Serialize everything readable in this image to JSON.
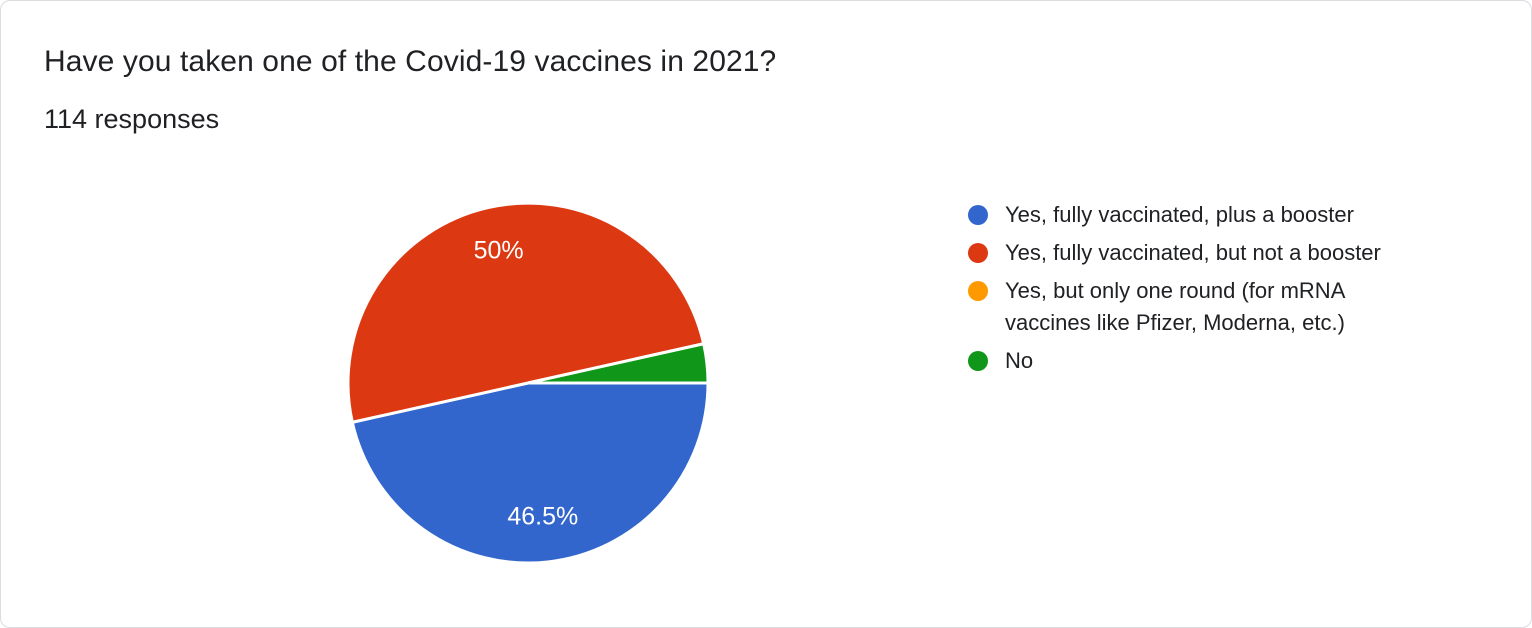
{
  "card": {
    "title": "Have you taken one of the Covid-19 vaccines in 2021?",
    "responses_text": "114 responses"
  },
  "chart_data": {
    "type": "pie",
    "title": "Have you taken one of the Covid-19 vaccines in 2021?",
    "subtitle": "114 responses",
    "total_responses": 114,
    "legend_position": "right",
    "start_angle_deg": 0,
    "direction": "clockwise",
    "slice_border_color": "#ffffff",
    "slices": [
      {
        "label": "Yes, fully vaccinated, plus a booster",
        "percent": 46.5,
        "display_percent": "46.5%",
        "color": "#3366CC"
      },
      {
        "label": "Yes, fully vaccinated, but not a booster",
        "percent": 50,
        "display_percent": "50%",
        "color": "#DC3912"
      },
      {
        "label": "Yes, but only one round (for mRNA vaccines like Pfizer, Moderna, etc.)",
        "percent": 0,
        "display_percent": "",
        "color": "#FF9900"
      },
      {
        "label": "No",
        "percent": 3.5,
        "display_percent": "",
        "color": "#109618"
      }
    ],
    "label_min_percent_shown": 5
  }
}
